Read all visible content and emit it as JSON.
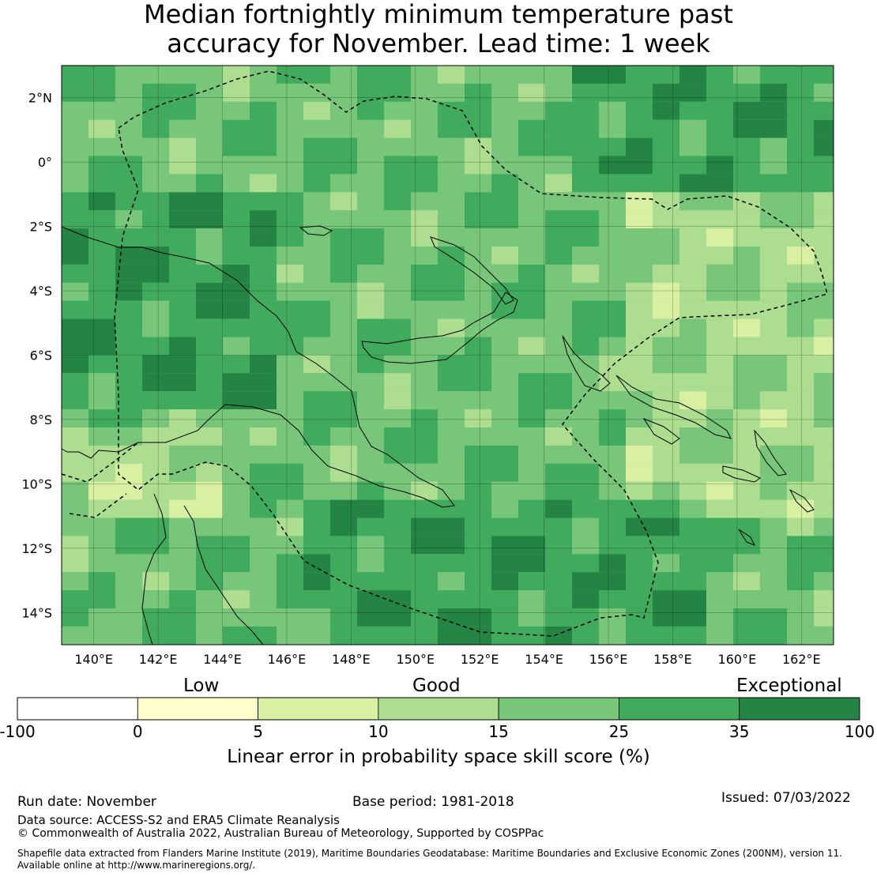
{
  "title": {
    "line1": "Median fortnightly minimum temperature past",
    "line2": "accuracy for November. Lead time: 1 week"
  },
  "map": {
    "lon_range": [
      139,
      163
    ],
    "lat_range": [
      -15,
      3
    ],
    "lon_ticks": [
      "140°E",
      "142°E",
      "144°E",
      "146°E",
      "148°E",
      "150°E",
      "152°E",
      "154°E",
      "156°E",
      "158°E",
      "160°E",
      "162°E"
    ],
    "lat_ticks": [
      "2°N",
      "0°",
      "2°S",
      "4°S",
      "6°S",
      "8°S",
      "10°S",
      "12°S",
      "14°S"
    ],
    "gridlines": true
  },
  "legend": {
    "categories": [
      "Low",
      "Good",
      "Exceptional"
    ],
    "bins": [
      {
        "from": "-100",
        "to": "0",
        "color": "#ffffff"
      },
      {
        "from": "0",
        "to": "5",
        "color": "#ffffcc"
      },
      {
        "from": "5",
        "to": "10",
        "color": "#d9f0a3"
      },
      {
        "from": "10",
        "to": "15",
        "color": "#addd8e"
      },
      {
        "from": "15",
        "to": "25",
        "color": "#78c679"
      },
      {
        "from": "25",
        "to": "35",
        "color": "#41ab5d"
      },
      {
        "from": "35",
        "to": "100",
        "color": "#238443"
      }
    ],
    "tick_labels": [
      "-100",
      "0",
      "5",
      "10",
      "15",
      "25",
      "35",
      "100"
    ],
    "label": "Linear error in probability space skill score (%)"
  },
  "footer": {
    "run_date": "Run date: November",
    "base_period": "Base period: 1981-2018",
    "issued": "Issued: 07/03/2022",
    "data_source": "Data source: ACCESS-S2 and ERA5 Climate Reanalysis",
    "copyright": "© Commonwealth of Australia 2022, Australian Bureau of Meteorology, Supported by COSPPac",
    "shapefile_line1": "Shapefile data extracted from Flanders Marine Institute (2019), Maritime Boundaries Geodatabase: Maritime Boundaries and Exclusive Economic Zones (200NM), version 11.",
    "shapefile_line2": "Available online at http://www.marineregions.org/."
  }
}
